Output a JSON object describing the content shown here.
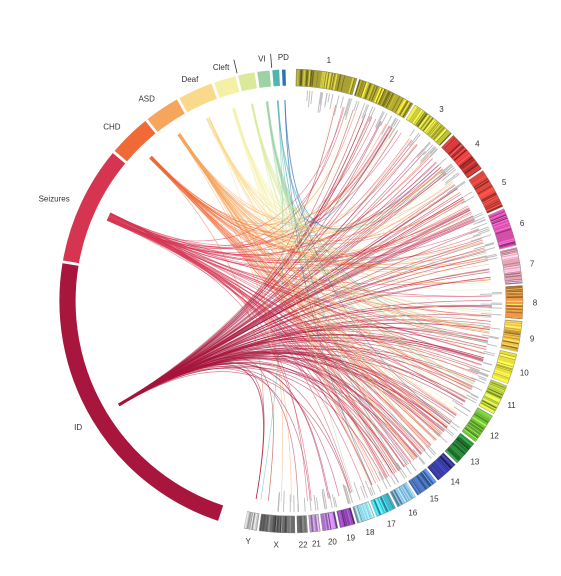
{
  "phenotypes": [
    {
      "key": "ID",
      "label": "ID",
      "color": "#a8163d",
      "weight": 30
    },
    {
      "key": "Seizures",
      "label": "Seizures",
      "color": "#d63552",
      "weight": 11
    },
    {
      "key": "CHD",
      "label": "CHD",
      "color": "#ef6a37",
      "weight": 4
    },
    {
      "key": "ASD",
      "label": "ASD",
      "color": "#f6a55c",
      "weight": 3.3
    },
    {
      "key": "Deaf",
      "label": "Deaf",
      "color": "#fbd98a",
      "weight": 3.3
    },
    {
      "key": "Cleft",
      "label": "Cleft",
      "color": "#f4f0a6",
      "weight": 2.1
    },
    {
      "key": "Cleft2",
      "label": "",
      "color": "#dbe99b",
      "weight": 1.6
    },
    {
      "key": "VI",
      "label": "VI",
      "color": "#9dd3a4",
      "weight": 1.2
    },
    {
      "key": "VI2",
      "label": "",
      "color": "#4fb5ad",
      "weight": 0.7
    },
    {
      "key": "PD",
      "label": "PD",
      "color": "#2f6fb3",
      "weight": 0.4
    }
  ],
  "chromosomes": [
    {
      "label": "1",
      "color": "#a8a235",
      "weight": 24
    },
    {
      "label": "2",
      "color": "#b6ad30",
      "weight": 23
    },
    {
      "label": "3",
      "color": "#c2c23a",
      "weight": 18
    },
    {
      "label": "4",
      "color": "#d93b3b",
      "weight": 17
    },
    {
      "label": "5",
      "color": "#e0473e",
      "weight": 16
    },
    {
      "label": "6",
      "color": "#d450a8",
      "weight": 15
    },
    {
      "label": "7",
      "color": "#e9a4b6",
      "weight": 14
    },
    {
      "label": "8",
      "color": "#f19a45",
      "weight": 13
    },
    {
      "label": "9",
      "color": "#f4c24a",
      "weight": 12
    },
    {
      "label": "10",
      "color": "#e9e040",
      "weight": 12
    },
    {
      "label": "11",
      "color": "#bfdb40",
      "weight": 12
    },
    {
      "label": "12",
      "color": "#77c53d",
      "weight": 12
    },
    {
      "label": "13",
      "color": "#2c8b3c",
      "weight": 10
    },
    {
      "label": "14",
      "color": "#383a9c",
      "weight": 9
    },
    {
      "label": "15",
      "color": "#4e7fcf",
      "weight": 9
    },
    {
      "label": "16",
      "color": "#8cc3e8",
      "weight": 8
    },
    {
      "label": "17",
      "color": "#43b9cf",
      "weight": 8
    },
    {
      "label": "18",
      "color": "#8fcfe0",
      "weight": 7
    },
    {
      "label": "19",
      "color": "#8b44ad",
      "weight": 6
    },
    {
      "label": "20",
      "color": "#a973c8",
      "weight": 6
    },
    {
      "label": "21",
      "color": "#c49ad8",
      "weight": 4
    },
    {
      "label": "22",
      "color": "#888888",
      "weight": 4
    },
    {
      "label": "X",
      "color": "#6e6e6e",
      "weight": 14
    },
    {
      "label": "Y",
      "color": "#cfcfcf",
      "weight": 5
    }
  ]
}
